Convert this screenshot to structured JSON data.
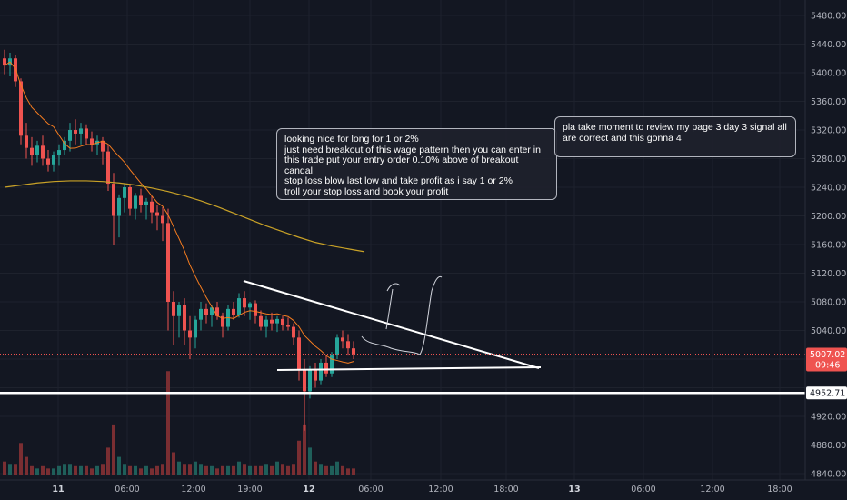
{
  "chart_data": {
    "type": "candlestick",
    "price_axis": {
      "ticks": [
        "5480.00",
        "5440.00",
        "5400.00",
        "5360.00",
        "5320.00",
        "5280.00",
        "5240.00",
        "5200.00",
        "5160.00",
        "5120.00",
        "5080.00",
        "5040.00",
        "4920.00",
        "4880.00",
        "4840.00"
      ],
      "range": [
        4800,
        5500
      ]
    },
    "time_axis": {
      "ticks": [
        {
          "label": "11",
          "bold": true
        },
        {
          "label": "06:00",
          "bold": false
        },
        {
          "label": "12:00",
          "bold": false
        },
        {
          "label": "19:00",
          "bold": false
        },
        {
          "label": "12",
          "bold": true
        },
        {
          "label": "06:00",
          "bold": false
        },
        {
          "label": "12:00",
          "bold": false
        },
        {
          "label": "18:00",
          "bold": false
        },
        {
          "label": "13",
          "bold": true
        },
        {
          "label": "06:00",
          "bold": false
        },
        {
          "label": "12:00",
          "bold": false
        },
        {
          "label": "18:00",
          "bold": false
        }
      ]
    },
    "last_price": {
      "value": "5007.02",
      "countdown": "09:46",
      "color": "#ef5350"
    },
    "support_level": {
      "value": "4952.71",
      "color": "#ffffff"
    },
    "colors": {
      "up": "#26a69a",
      "down": "#ef5350",
      "ma_fast": "#f57c1f",
      "ma_slow": "#c9a227",
      "volume_up": "#1f5f5a",
      "volume_down": "#7a2e32"
    },
    "candles": [
      [
        5420,
        5432,
        5398,
        5410
      ],
      [
        5410,
        5428,
        5395,
        5420
      ],
      [
        5420,
        5425,
        5380,
        5388
      ],
      [
        5388,
        5392,
        5300,
        5312
      ],
      [
        5312,
        5330,
        5280,
        5295
      ],
      [
        5295,
        5310,
        5270,
        5285
      ],
      [
        5285,
        5305,
        5275,
        5298
      ],
      [
        5298,
        5312,
        5270,
        5280
      ],
      [
        5280,
        5292,
        5262,
        5272
      ],
      [
        5272,
        5290,
        5262,
        5285
      ],
      [
        5285,
        5300,
        5270,
        5292
      ],
      [
        5292,
        5310,
        5285,
        5305
      ],
      [
        5305,
        5330,
        5290,
        5320
      ],
      [
        5320,
        5335,
        5300,
        5315
      ],
      [
        5315,
        5330,
        5300,
        5322
      ],
      [
        5322,
        5328,
        5300,
        5308
      ],
      [
        5308,
        5318,
        5290,
        5300
      ],
      [
        5300,
        5312,
        5285,
        5305
      ],
      [
        5305,
        5310,
        5272,
        5290
      ],
      [
        5290,
        5300,
        5235,
        5245
      ],
      [
        5245,
        5260,
        5160,
        5200
      ],
      [
        5200,
        5230,
        5170,
        5225
      ],
      [
        5225,
        5245,
        5205,
        5240
      ],
      [
        5240,
        5245,
        5200,
        5210
      ],
      [
        5210,
        5232,
        5195,
        5228
      ],
      [
        5228,
        5238,
        5205,
        5215
      ],
      [
        5215,
        5225,
        5195,
        5220
      ],
      [
        5220,
        5228,
        5190,
        5205
      ],
      [
        5205,
        5215,
        5180,
        5200
      ],
      [
        5200,
        5212,
        5165,
        5190
      ],
      [
        5190,
        5210,
        5040,
        5080
      ],
      [
        5080,
        5095,
        5020,
        5060
      ],
      [
        5060,
        5080,
        5030,
        5075
      ],
      [
        5075,
        5085,
        5020,
        5040
      ],
      [
        5040,
        5060,
        5000,
        5030
      ],
      [
        5030,
        5060,
        5015,
        5055
      ],
      [
        5055,
        5080,
        5040,
        5070
      ],
      [
        5070,
        5078,
        5050,
        5062
      ],
      [
        5062,
        5075,
        5045,
        5072
      ],
      [
        5072,
        5080,
        5055,
        5060
      ],
      [
        5060,
        5065,
        5030,
        5045
      ],
      [
        5045,
        5075,
        5040,
        5070
      ],
      [
        5070,
        5080,
        5055,
        5062
      ],
      [
        5062,
        5092,
        5058,
        5085
      ],
      [
        5085,
        5095,
        5060,
        5072
      ],
      [
        5072,
        5080,
        5055,
        5078
      ],
      [
        5078,
        5082,
        5050,
        5060
      ],
      [
        5060,
        5068,
        5040,
        5045
      ],
      [
        5045,
        5060,
        5030,
        5055
      ],
      [
        5055,
        5065,
        5040,
        5050
      ],
      [
        5050,
        5060,
        5038,
        5056
      ],
      [
        5056,
        5060,
        5040,
        5048
      ],
      [
        5048,
        5058,
        5040,
        5045
      ],
      [
        5045,
        5050,
        5020,
        5030
      ],
      [
        5030,
        5040,
        4970,
        4985
      ],
      [
        4985,
        5000,
        4900,
        4955
      ],
      [
        4955,
        4990,
        4945,
        4985
      ],
      [
        4985,
        4995,
        4960,
        4970
      ],
      [
        4970,
        5000,
        4965,
        4995
      ],
      [
        4995,
        5005,
        4975,
        4980
      ],
      [
        4980,
        5010,
        4975,
        5005
      ],
      [
        5005,
        5035,
        5000,
        5030
      ],
      [
        5030,
        5040,
        5015,
        5025
      ],
      [
        5025,
        5035,
        5005,
        5015
      ],
      [
        5015,
        5025,
        5000,
        5007
      ]
    ],
    "volumes": [
      6,
      5,
      5,
      14,
      8,
      4,
      3,
      4,
      3,
      3,
      4,
      5,
      5,
      4,
      4,
      4,
      3,
      4,
      5,
      12,
      22,
      8,
      5,
      4,
      4,
      3,
      4,
      3,
      4,
      5,
      45,
      10,
      6,
      5,
      5,
      6,
      5,
      4,
      4,
      3,
      4,
      4,
      4,
      6,
      5,
      4,
      4,
      4,
      5,
      4,
      6,
      5,
      4,
      5,
      15,
      22,
      12,
      6,
      5,
      4,
      4,
      6,
      4,
      3,
      3
    ],
    "annotations": {
      "note1": "looking nice for long for 1 or 2%\njust need breakout of this wage pattern then you can enter in this trade put your entry order 0.10% above of breakout candal\nstop loss blow last low and take profit as i say 1 or 2%\ntroll your stop loss and book your profit",
      "note2": "pla take moment to review my page 3 day 3 signal all are correct and this gonna 4"
    }
  }
}
